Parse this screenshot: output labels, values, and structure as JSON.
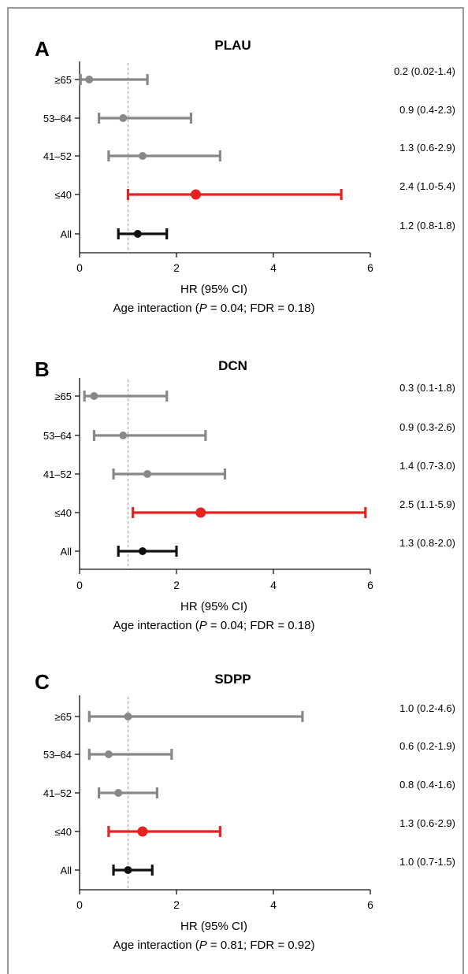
{
  "chart_data": [
    {
      "type": "forest",
      "panel": "A",
      "title": "PLAU",
      "categories": [
        "≥65",
        "53–64",
        "41–52",
        "≤40",
        "All"
      ],
      "hr": [
        0.2,
        0.9,
        1.3,
        2.4,
        1.2
      ],
      "ci_low": [
        0.02,
        0.4,
        0.6,
        1.0,
        0.8
      ],
      "ci_high": [
        1.4,
        2.3,
        2.9,
        5.4,
        1.8
      ],
      "estimate_labels": [
        "0.2 (0.02-1.4)",
        "0.9 (0.4-2.3)",
        "1.3 (0.6-2.9)",
        "2.4 (1.0-5.4)",
        "1.2  (0.8-1.8)"
      ],
      "colors": [
        "#888888",
        "#888888",
        "#888888",
        "#e8211f",
        "#111111"
      ],
      "xlim": [
        0,
        6
      ],
      "xticks": [
        "0",
        "2",
        "4",
        "6"
      ],
      "reference_line": 1,
      "xlabel": "HR (95% CI)",
      "annotation": {
        "prefix": "Age interaction  (",
        "p_symbol": "P",
        "rest": " = 0.04; FDR = 0.18)"
      }
    },
    {
      "type": "forest",
      "panel": "B",
      "title": "DCN",
      "categories": [
        "≥65",
        "53–64",
        "41–52",
        "≤40",
        "All"
      ],
      "hr": [
        0.3,
        0.9,
        1.4,
        2.5,
        1.3
      ],
      "ci_low": [
        0.1,
        0.3,
        0.7,
        1.1,
        0.8
      ],
      "ci_high": [
        1.8,
        2.6,
        3.0,
        5.9,
        2.0
      ],
      "estimate_labels": [
        "0.3 (0.1-1.8)",
        "0.9 (0.3-2.6)",
        "1.4 (0.7-3.0)",
        "2.5 (1.1-5.9)",
        "1.3 (0.8-2.0)"
      ],
      "colors": [
        "#888888",
        "#888888",
        "#888888",
        "#e8211f",
        "#111111"
      ],
      "xlim": [
        0,
        6
      ],
      "xticks": [
        "0",
        "2",
        "4",
        "6"
      ],
      "reference_line": 1,
      "xlabel": "HR (95% CI)",
      "annotation": {
        "prefix": "Age interaction  (",
        "p_symbol": "P",
        "rest": " = 0.04; FDR = 0.18)"
      }
    },
    {
      "type": "forest",
      "panel": "C",
      "title": "SDPP",
      "categories": [
        "≥65",
        "53–64",
        "41–52",
        "≤40",
        "All"
      ],
      "hr": [
        1.0,
        0.6,
        0.8,
        1.3,
        1.0
      ],
      "ci_low": [
        0.2,
        0.2,
        0.4,
        0.6,
        0.7
      ],
      "ci_high": [
        4.6,
        1.9,
        1.6,
        2.9,
        1.5
      ],
      "estimate_labels": [
        "1.0 (0.2-4.6)",
        "0.6 (0.2-1.9)",
        "0.8 (0.4-1.6)",
        "1.3 (0.6-2.9)",
        "1.0  (0.7-1.5)"
      ],
      "colors": [
        "#888888",
        "#888888",
        "#888888",
        "#e8211f",
        "#111111"
      ],
      "xlim": [
        0,
        6
      ],
      "xticks": [
        "0",
        "2",
        "4",
        "6"
      ],
      "reference_line": 1,
      "xlabel": "HR (95% CI)",
      "annotation": {
        "prefix": "Age interaction  (",
        "p_symbol": "P",
        "rest": " = 0.81; FDR = 0.92)"
      }
    }
  ]
}
